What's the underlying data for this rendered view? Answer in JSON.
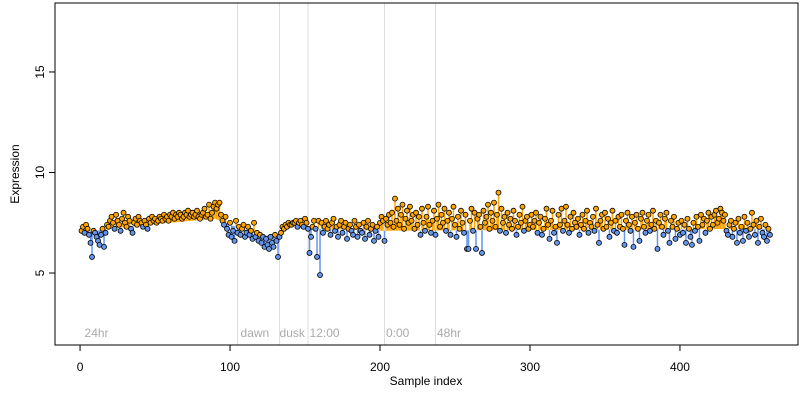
{
  "chart_data": {
    "type": "lollipop-scatter",
    "xlabel": "Sample index",
    "ylabel": "Expression",
    "xlim": [
      -16.7,
      478.7
    ],
    "ylim": [
      1.42,
      18.43
    ],
    "xticks": [
      0,
      100,
      200,
      300,
      400
    ],
    "yticks": [
      5,
      10,
      15
    ],
    "above_color": "#ffa500",
    "below_color": "#6495ed",
    "vline_color": "#dddddd",
    "vlines": [
      105,
      133,
      152,
      203,
      237
    ],
    "annotations": [
      {
        "text": "24hr",
        "x": 3
      },
      {
        "text": "dawn",
        "x": 107
      },
      {
        "text": "dusk",
        "x": 133
      },
      {
        "text": "12:00",
        "x": 153
      },
      {
        "text": "0:00",
        "x": 204
      },
      {
        "text": "48hr",
        "x": 238
      }
    ],
    "fit": {
      "x": [
        1,
        20,
        60,
        90,
        100,
        120,
        132,
        140,
        160,
        200,
        460
      ],
      "values": [
        7.0,
        7.2,
        7.5,
        7.7,
        7.4,
        6.9,
        6.8,
        7.4,
        7.2,
        7.1,
        7.2
      ]
    },
    "x": [
      1,
      2,
      3,
      4,
      5,
      6,
      7,
      8,
      9,
      10,
      11,
      12,
      13,
      14,
      15,
      16,
      17,
      18,
      19,
      20,
      21,
      22,
      23,
      24,
      25,
      26,
      27,
      28,
      29,
      30,
      31,
      32,
      33,
      34,
      35,
      36,
      37,
      38,
      39,
      40,
      41,
      42,
      43,
      44,
      45,
      46,
      47,
      48,
      49,
      50,
      51,
      52,
      53,
      54,
      55,
      56,
      57,
      58,
      59,
      60,
      61,
      62,
      63,
      64,
      65,
      66,
      67,
      68,
      69,
      70,
      71,
      72,
      73,
      74,
      75,
      76,
      77,
      78,
      79,
      80,
      81,
      82,
      83,
      84,
      85,
      86,
      87,
      88,
      89,
      90,
      91,
      92,
      93,
      94,
      95,
      96,
      97,
      98,
      99,
      100,
      101,
      102,
      103,
      104,
      105,
      106,
      107,
      108,
      109,
      110,
      111,
      112,
      113,
      114,
      115,
      116,
      117,
      118,
      119,
      120,
      121,
      122,
      123,
      124,
      125,
      126,
      127,
      128,
      129,
      130,
      131,
      132,
      133,
      134,
      135,
      136,
      137,
      138,
      139,
      140,
      141,
      142,
      143,
      144,
      145,
      146,
      147,
      148,
      149,
      150,
      151,
      152,
      153,
      154,
      155,
      156,
      157,
      158,
      159,
      160,
      161,
      162,
      163,
      164,
      165,
      166,
      167,
      168,
      169,
      170,
      171,
      172,
      173,
      174,
      175,
      176,
      177,
      178,
      179,
      180,
      181,
      182,
      183,
      184,
      185,
      186,
      187,
      188,
      189,
      190,
      191,
      192,
      193,
      194,
      195,
      196,
      197,
      198,
      199,
      200,
      201,
      202,
      203,
      204,
      205,
      206,
      207,
      208,
      209,
      210,
      211,
      212,
      213,
      214,
      215,
      216,
      217,
      218,
      219,
      220,
      221,
      222,
      223,
      224,
      225,
      226,
      227,
      228,
      229,
      230,
      231,
      232,
      233,
      234,
      235,
      236,
      237,
      238,
      239,
      240,
      241,
      242,
      243,
      244,
      245,
      246,
      247,
      248,
      249,
      250,
      251,
      252,
      253,
      254,
      255,
      256,
      257,
      258,
      259,
      260,
      261,
      262,
      263,
      264,
      265,
      266,
      267,
      268,
      269,
      270,
      271,
      272,
      273,
      274,
      275,
      276,
      277,
      278,
      279,
      280,
      281,
      282,
      283,
      284,
      285,
      286,
      287,
      288,
      289,
      290,
      291,
      292,
      293,
      294,
      295,
      296,
      297,
      298,
      299,
      300,
      301,
      302,
      303,
      304,
      305,
      306,
      307,
      308,
      309,
      310,
      311,
      312,
      313,
      314,
      315,
      316,
      317,
      318,
      319,
      320,
      321,
      322,
      323,
      324,
      325,
      326,
      327,
      328,
      329,
      330,
      331,
      332,
      333,
      334,
      335,
      336,
      337,
      338,
      339,
      340,
      341,
      342,
      343,
      344,
      345,
      346,
      347,
      348,
      349,
      350,
      351,
      352,
      353,
      354,
      355,
      356,
      357,
      358,
      359,
      360,
      361,
      362,
      363,
      364,
      365,
      366,
      367,
      368,
      369,
      370,
      371,
      372,
      373,
      374,
      375,
      376,
      377,
      378,
      379,
      380,
      381,
      382,
      383,
      384,
      385,
      386,
      387,
      388,
      389,
      390,
      391,
      392,
      393,
      394,
      395,
      396,
      397,
      398,
      399,
      400,
      401,
      402,
      403,
      404,
      405,
      406,
      407,
      408,
      409,
      410,
      411,
      412,
      413,
      414,
      415,
      416,
      417,
      418,
      419,
      420,
      421,
      422,
      423,
      424,
      425,
      426,
      427,
      428,
      429,
      430,
      431,
      432,
      433,
      434,
      435,
      436,
      437,
      438,
      439,
      440,
      441,
      442,
      443,
      444,
      445,
      446,
      447,
      448,
      449,
      450,
      451,
      452,
      453,
      454,
      455,
      456,
      457,
      458,
      459,
      460
    ],
    "values": [
      7.1,
      7.3,
      7.0,
      7.4,
      7.2,
      6.9,
      6.5,
      5.8,
      7.1,
      7.0,
      6.8,
      6.6,
      6.4,
      6.9,
      7.2,
      6.3,
      7.0,
      7.4,
      7.3,
      7.6,
      7.8,
      7.5,
      7.2,
      7.9,
      7.6,
      7.4,
      7.1,
      7.7,
      8.0,
      7.5,
      7.3,
      7.8,
      7.6,
      7.2,
      7.0,
      7.5,
      7.7,
      7.4,
      7.8,
      7.6,
      7.5,
      7.3,
      7.6,
      7.4,
      7.2,
      7.7,
      7.5,
      7.8,
      7.6,
      7.7,
      7.5,
      7.6,
      7.8,
      7.7,
      7.6,
      7.9,
      7.7,
      7.8,
      7.6,
      7.9,
      7.8,
      8.0,
      7.7,
      7.9,
      7.8,
      8.0,
      7.9,
      7.7,
      7.8,
      8.0,
      7.9,
      8.1,
      7.8,
      7.9,
      8.0,
      7.8,
      7.9,
      8.1,
      7.8,
      7.7,
      7.9,
      8.0,
      8.2,
      7.8,
      7.9,
      8.4,
      7.7,
      8.0,
      8.3,
      8.5,
      8.2,
      8.4,
      8.5,
      7.9,
      7.6,
      7.4,
      7.8,
      7.2,
      6.9,
      7.5,
      6.8,
      7.1,
      6.6,
      7.6,
      7.0,
      7.3,
      6.9,
      7.2,
      7.4,
      6.8,
      7.0,
      7.3,
      6.9,
      7.1,
      6.7,
      7.5,
      6.8,
      7.0,
      6.6,
      6.9,
      6.5,
      6.8,
      6.3,
      6.7,
      6.4,
      6.2,
      6.8,
      6.5,
      6.3,
      6.9,
      6.6,
      5.8,
      6.8,
      7.0,
      7.3,
      7.2,
      7.4,
      7.3,
      7.5,
      7.4,
      7.4,
      7.5,
      7.5,
      7.6,
      7.3,
      7.5,
      7.6,
      7.4,
      7.3,
      7.7,
      7.5,
      7.2,
      6.0,
      6.8,
      7.3,
      7.6,
      7.2,
      5.8,
      7.6,
      4.9,
      7.5,
      7.0,
      7.3,
      7.6,
      7.2,
      7.4,
      6.9,
      7.5,
      7.7,
      7.1,
      7.3,
      6.8,
      7.4,
      7.6,
      7.0,
      7.3,
      7.5,
      6.7,
      7.2,
      7.4,
      7.1,
      6.9,
      7.6,
      7.3,
      6.8,
      7.4,
      7.1,
      7.0,
      7.5,
      6.7,
      7.3,
      7.6,
      6.9,
      7.2,
      7.4,
      6.6,
      7.1,
      7.3,
      6.8,
      7.5,
      7.8,
      7.6,
      6.6,
      7.7,
      7.4,
      7.9,
      7.5,
      8.0,
      7.3,
      8.7,
      7.6,
      8.2,
      7.4,
      7.9,
      8.4,
      7.2,
      7.7,
      8.1,
      7.5,
      8.3,
      7.6,
      7.9,
      7.2,
      8.0,
      7.4,
      7.8,
      6.9,
      8.2,
      7.5,
      7.1,
      7.8,
      8.3,
      7.4,
      7.0,
      7.6,
      8.1,
      6.9,
      7.7,
      8.4,
      7.3,
      7.9,
      7.5,
      8.2,
      7.1,
      7.6,
      8.0,
      6.9,
      7.7,
      8.3,
      7.4,
      6.8,
      7.8,
      7.2,
      8.1,
      7.5,
      7.0,
      7.9,
      6.2,
      6.2,
      7.6,
      8.2,
      7.1,
      8.0,
      6.2,
      7.7,
      7.9,
      7.3,
      6.0,
      8.1,
      7.5,
      7.8,
      8.4,
      7.2,
      8.0,
      7.6,
      8.5,
      7.3,
      7.9,
      9.0,
      7.1,
      8.2,
      7.5,
      7.8,
      7.0,
      8.0,
      7.4,
      7.7,
      7.2,
      8.1,
      7.6,
      6.9,
      7.3,
      7.9,
      7.5,
      8.3,
      7.1,
      7.6,
      7.8,
      7.2,
      7.4,
      7.9,
      7.3,
      7.6,
      8.0,
      7.0,
      7.5,
      7.8,
      6.9,
      7.2,
      7.7,
      8.2,
      7.4,
      6.7,
      7.6,
      8.1,
      7.0,
      7.3,
      6.5,
      7.9,
      7.4,
      8.2,
      7.1,
      7.6,
      8.3,
      7.4,
      7.0,
      7.8,
      7.2,
      8.0,
      7.5,
      7.3,
      7.7,
      6.9,
      7.4,
      7.9,
      7.2,
      7.6,
      8.1,
      7.0,
      7.5,
      7.3,
      7.8,
      7.1,
      8.2,
      7.4,
      6.5,
      7.6,
      7.9,
      7.2,
      8.0,
      7.3,
      7.7,
      6.8,
      7.5,
      8.1,
      7.1,
      7.6,
      7.0,
      7.8,
      7.3,
      7.9,
      7.2,
      6.4,
      7.6,
      8.0,
      7.4,
      7.1,
      7.8,
      6.3,
      7.5,
      7.9,
      7.2,
      6.6,
      7.7,
      8.0,
      7.3,
      7.0,
      7.6,
      7.9,
      7.1,
      7.4,
      8.1,
      7.2,
      7.6,
      6.2,
      7.5,
      7.9,
      7.3,
      6.9,
      7.7,
      8.0,
      7.1,
      6.5,
      7.6,
      7.3,
      7.8,
      6.7,
      7.2,
      7.5,
      6.9,
      7.6,
      7.0,
      7.4,
      6.5,
      7.7,
      7.2,
      6.8,
      6.4,
      7.5,
      7.1,
      7.8,
      7.3,
      6.6,
      7.9,
      7.4,
      7.7,
      7.0,
      7.6,
      8.0,
      7.2,
      7.8,
      7.4,
      7.9,
      8.1,
      7.5,
      7.7,
      8.2,
      8.0,
      7.6,
      7.9,
      7.1,
      6.9,
      7.4,
      7.6,
      6.8,
      7.2,
      7.5,
      6.5,
      7.7,
      7.0,
      7.3,
      6.6,
      7.8,
      7.1,
      7.5,
      6.8,
      7.2,
      8.0,
      7.4,
      6.9,
      7.6,
      6.5,
      7.3,
      7.7,
      7.0,
      6.8,
      7.4,
      6.6,
      7.2,
      6.9
    ]
  }
}
